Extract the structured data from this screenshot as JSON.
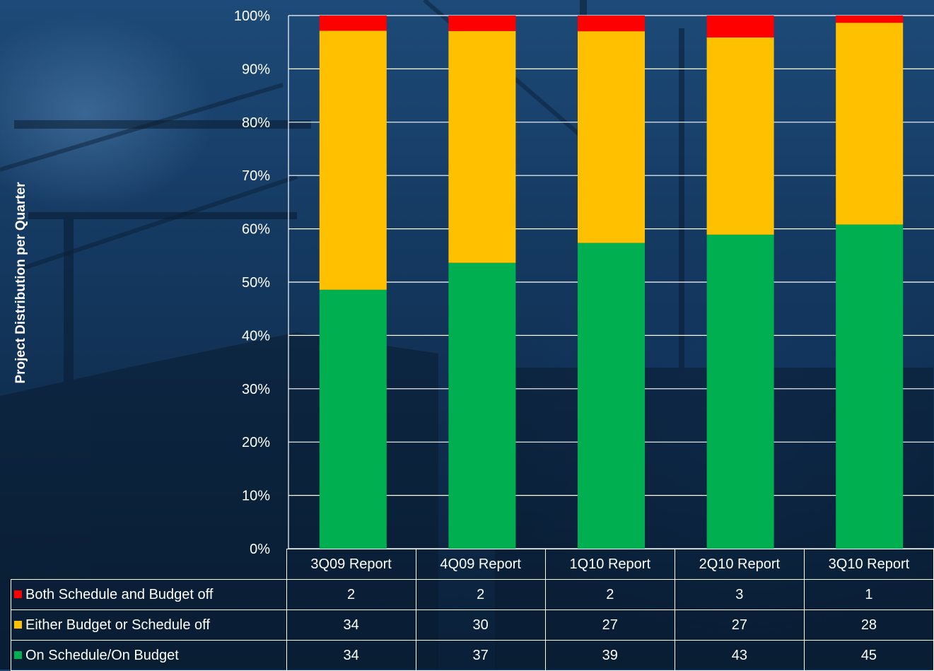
{
  "chart_data": {
    "type": "bar",
    "stacked": true,
    "percent": true,
    "categories": [
      "3Q09 Report",
      "4Q09 Report",
      "1Q10 Report",
      "2Q10 Report",
      "3Q10 Report"
    ],
    "series": [
      {
        "name": "On Schedule/On Budget",
        "values": [
          34,
          37,
          39,
          43,
          45
        ],
        "color": "#00b050"
      },
      {
        "name": "Either Budget or Schedule off",
        "values": [
          34,
          30,
          27,
          27,
          28
        ],
        "color": "#ffc000"
      },
      {
        "name": "Both Schedule and Budget off",
        "values": [
          2,
          2,
          2,
          3,
          1
        ],
        "color": "#ff0000"
      }
    ],
    "ylabel": "Project Distribution per Quarter",
    "ylim": [
      0,
      100
    ],
    "yticks": [
      "0%",
      "10%",
      "20%",
      "30%",
      "40%",
      "50%",
      "60%",
      "70%",
      "80%",
      "90%",
      "100%"
    ],
    "grid": true,
    "legend": "data-table"
  },
  "table": {
    "rows": [
      {
        "label": "Both Schedule and Budget off",
        "color": "#ff0000",
        "values": [
          "2",
          "2",
          "2",
          "3",
          "1"
        ]
      },
      {
        "label": "Either Budget or Schedule off",
        "color": "#ffc000",
        "values": [
          "34",
          "30",
          "27",
          "27",
          "28"
        ]
      },
      {
        "label": "On Schedule/On Budget",
        "color": "#00b050",
        "values": [
          "34",
          "37",
          "39",
          "43",
          "45"
        ]
      }
    ]
  }
}
